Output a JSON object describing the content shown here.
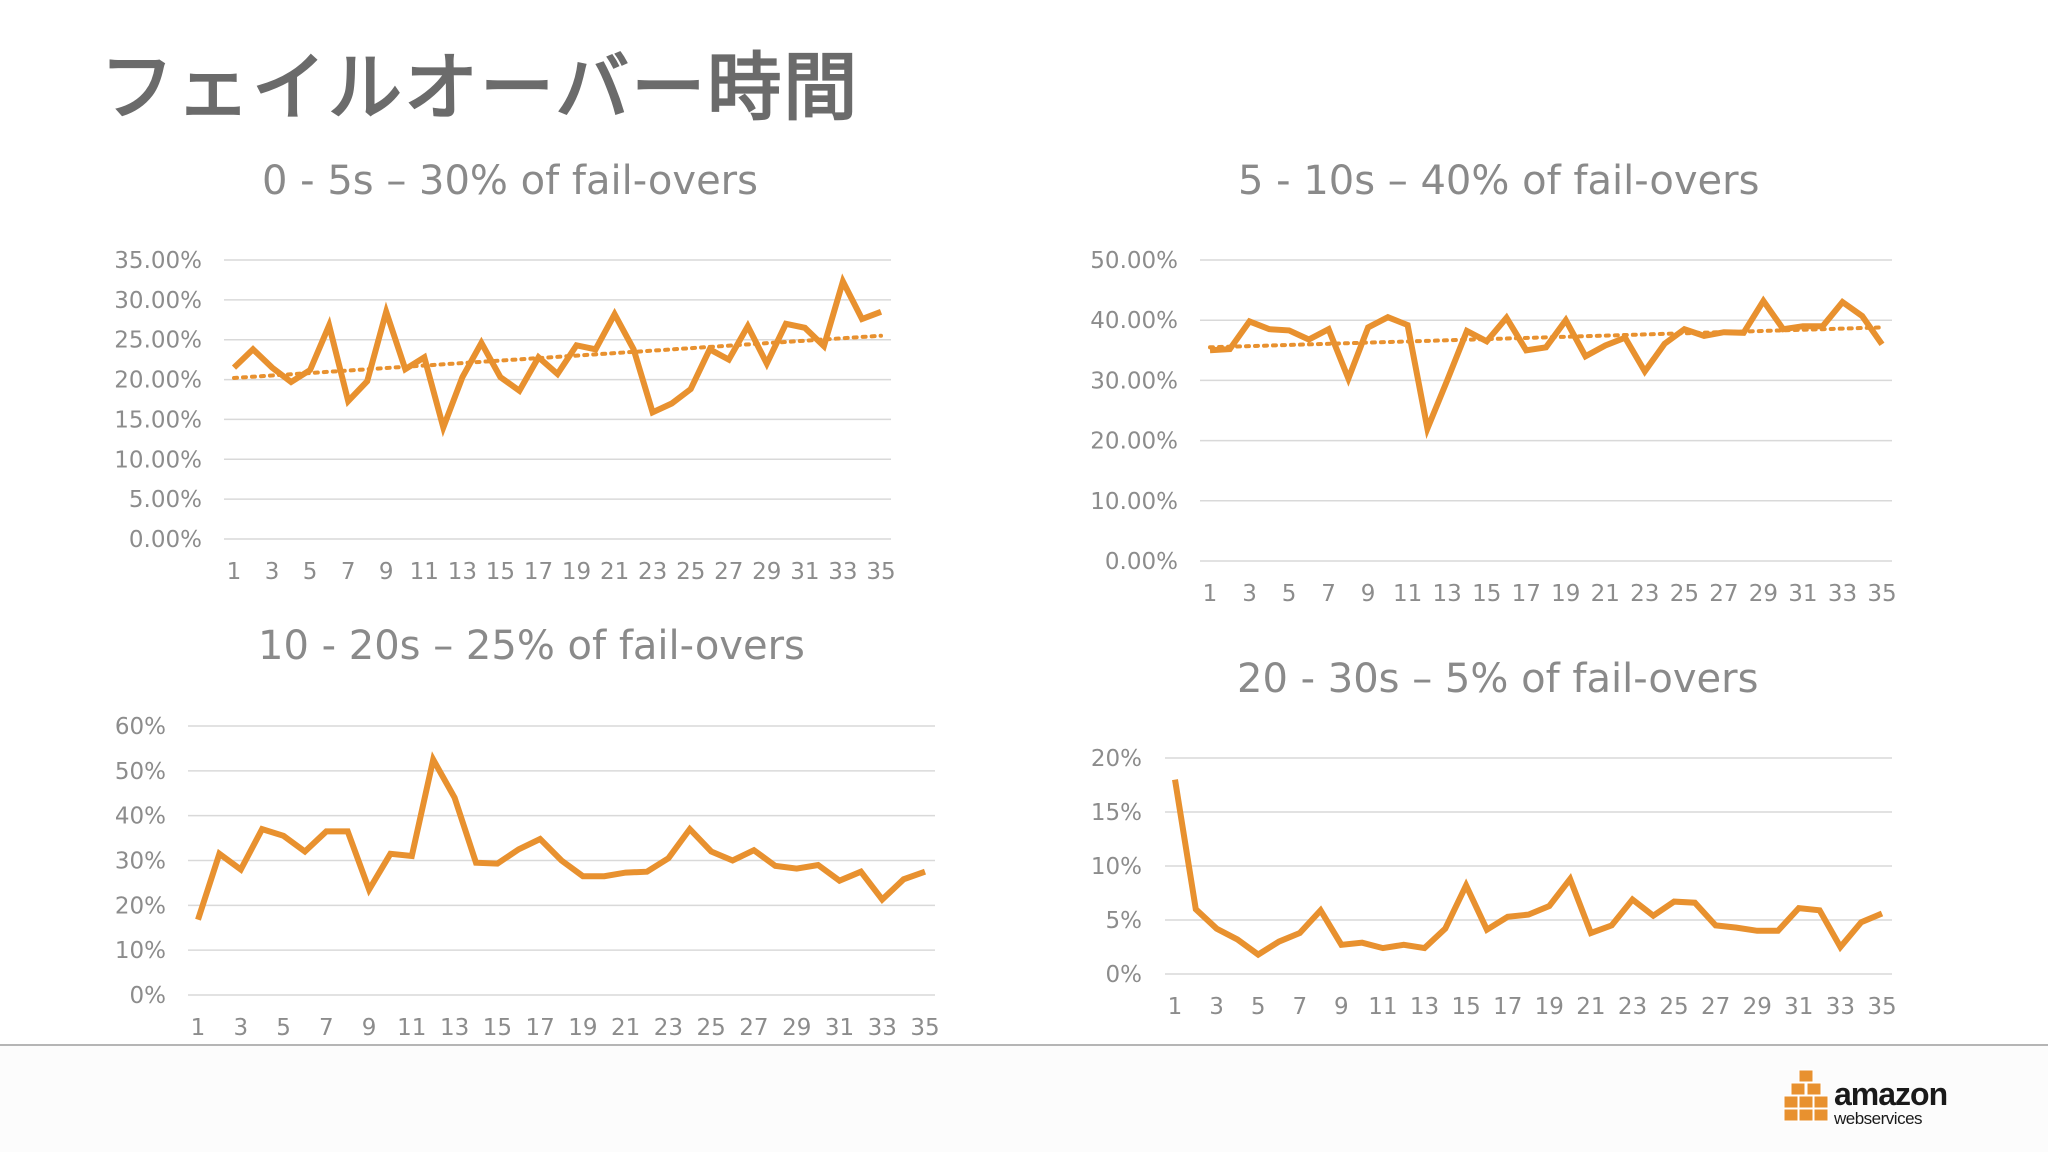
{
  "slide": {
    "title": "フェイルオーバー時間"
  },
  "brand": {
    "logo_line1": "amazon",
    "logo_line2": "webservices",
    "accent": "#e8912f"
  },
  "chart_data": [
    {
      "type": "line",
      "title": "0 - 5s – 30% of fail-overs",
      "x": [
        1,
        2,
        3,
        4,
        5,
        6,
        7,
        8,
        9,
        10,
        11,
        12,
        13,
        14,
        15,
        16,
        17,
        18,
        19,
        20,
        21,
        22,
        23,
        24,
        25,
        26,
        27,
        28,
        29,
        30,
        31,
        32,
        33,
        34,
        35
      ],
      "x_tick_labels": [
        "1",
        "3",
        "5",
        "7",
        "9",
        "11",
        "13",
        "15",
        "17",
        "19",
        "21",
        "23",
        "25",
        "27",
        "29",
        "31",
        "33",
        "35"
      ],
      "y_tick_labels": [
        "0.00%",
        "5.00%",
        "10.00%",
        "15.00%",
        "20.00%",
        "25.00%",
        "30.00%",
        "35.00%"
      ],
      "ylim": [
        0,
        35
      ],
      "series": [
        {
          "name": "fail-overs",
          "color": "#e8912f",
          "values": [
            21.5,
            23.8,
            21.5,
            19.7,
            21.2,
            26.8,
            17.3,
            19.8,
            28.5,
            21.3,
            22.8,
            14.0,
            20.3,
            24.6,
            20.3,
            18.6,
            22.8,
            20.7,
            24.3,
            23.8,
            28.2,
            23.8,
            15.9,
            17.0,
            18.8,
            23.8,
            22.5,
            26.7,
            22.0,
            27.0,
            26.5,
            24.2,
            32.3,
            27.6,
            28.5
          ]
        }
      ],
      "trendline": {
        "start": 20.2,
        "end": 25.5,
        "style": "dotted"
      },
      "grid": true
    },
    {
      "type": "line",
      "title": "5 - 10s – 40% of fail-overs",
      "x": [
        1,
        2,
        3,
        4,
        5,
        6,
        7,
        8,
        9,
        10,
        11,
        12,
        13,
        14,
        15,
        16,
        17,
        18,
        19,
        20,
        21,
        22,
        23,
        24,
        25,
        26,
        27,
        28,
        29,
        30,
        31,
        32,
        33,
        34,
        35
      ],
      "x_tick_labels": [
        "1",
        "3",
        "5",
        "7",
        "9",
        "11",
        "13",
        "15",
        "17",
        "19",
        "21",
        "23",
        "25",
        "27",
        "29",
        "31",
        "33",
        "35"
      ],
      "y_tick_labels": [
        "0.00%",
        "10.00%",
        "20.00%",
        "30.00%",
        "40.00%",
        "50.00%"
      ],
      "ylim": [
        0,
        50
      ],
      "series": [
        {
          "name": "fail-overs",
          "color": "#e8912f",
          "values": [
            35.0,
            35.2,
            39.8,
            38.5,
            38.3,
            36.8,
            38.5,
            30.3,
            38.8,
            40.5,
            39.2,
            22.0,
            30.0,
            38.2,
            36.5,
            40.4,
            35.0,
            35.5,
            40.0,
            34.0,
            35.8,
            37.1,
            31.5,
            36.1,
            38.5,
            37.4,
            38.0,
            37.9,
            43.2,
            38.5,
            39.0,
            39.0,
            43.0,
            40.7,
            36.0
          ]
        }
      ],
      "trendline": {
        "start": 35.5,
        "end": 38.8,
        "style": "dotted"
      },
      "grid": true
    },
    {
      "type": "line",
      "title": "10 - 20s – 25% of fail-overs",
      "x": [
        1,
        2,
        3,
        4,
        5,
        6,
        7,
        8,
        9,
        10,
        11,
        12,
        13,
        14,
        15,
        16,
        17,
        18,
        19,
        20,
        21,
        22,
        23,
        24,
        25,
        26,
        27,
        28,
        29,
        30,
        31,
        32,
        33,
        34,
        35
      ],
      "x_tick_labels": [
        "1",
        "3",
        "5",
        "7",
        "9",
        "11",
        "13",
        "15",
        "17",
        "19",
        "21",
        "23",
        "25",
        "27",
        "29",
        "31",
        "33",
        "35"
      ],
      "y_tick_labels": [
        "0%",
        "10%",
        "20%",
        "30%",
        "40%",
        "50%",
        "60%"
      ],
      "ylim": [
        0,
        60
      ],
      "series": [
        {
          "name": "fail-overs",
          "color": "#e8912f",
          "values": [
            16.8,
            31.5,
            28.0,
            37.0,
            35.5,
            32.0,
            36.5,
            36.5,
            23.5,
            31.5,
            31.0,
            52.5,
            44.0,
            29.5,
            29.3,
            32.5,
            34.8,
            30.0,
            26.5,
            26.5,
            27.3,
            27.5,
            30.5,
            37.0,
            32.0,
            30.0,
            32.3,
            28.8,
            28.2,
            29.0,
            25.5,
            27.5,
            21.3,
            25.8,
            27.5
          ]
        }
      ],
      "grid": true
    },
    {
      "type": "line",
      "title": "20 - 30s – 5% of fail-overs",
      "x": [
        1,
        2,
        3,
        4,
        5,
        6,
        7,
        8,
        9,
        10,
        11,
        12,
        13,
        14,
        15,
        16,
        17,
        18,
        19,
        20,
        21,
        22,
        23,
        24,
        25,
        26,
        27,
        28,
        29,
        30,
        31,
        32,
        33,
        34,
        35
      ],
      "x_tick_labels": [
        "1",
        "3",
        "5",
        "7",
        "9",
        "11",
        "13",
        "15",
        "17",
        "19",
        "21",
        "23",
        "25",
        "27",
        "29",
        "31",
        "33",
        "35"
      ],
      "y_tick_labels": [
        "0%",
        "5%",
        "10%",
        "15%",
        "20%"
      ],
      "ylim": [
        0,
        20
      ],
      "series": [
        {
          "name": "fail-overs",
          "color": "#e8912f",
          "values": [
            18.0,
            6.0,
            4.2,
            3.2,
            1.8,
            3.0,
            3.8,
            5.9,
            2.7,
            2.9,
            2.4,
            2.7,
            2.4,
            4.2,
            8.2,
            4.1,
            5.3,
            5.5,
            6.3,
            8.8,
            3.8,
            4.5,
            6.9,
            5.4,
            6.7,
            6.6,
            4.5,
            4.3,
            4.0,
            4.0,
            6.1,
            5.9,
            2.5,
            4.8,
            5.6
          ]
        }
      ],
      "grid": true
    }
  ]
}
